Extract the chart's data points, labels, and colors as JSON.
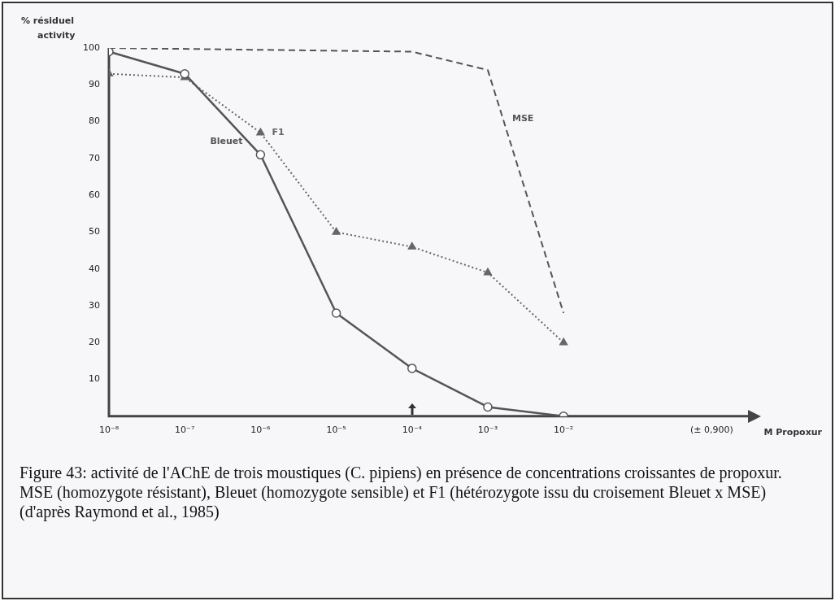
{
  "chart_data": {
    "type": "line",
    "ylabel": "% résiduel activity",
    "xlabel": "M Propoxur",
    "log": "x",
    "xlim": [
      1e-08,
      3
    ],
    "xticks": [
      {
        "value": 1e-08,
        "label": "10⁻⁸"
      },
      {
        "value": 1e-07,
        "label": "10⁻⁷"
      },
      {
        "value": 1e-06,
        "label": "10⁻⁶"
      },
      {
        "value": 1e-05,
        "label": "10⁻⁵"
      },
      {
        "value": 0.0001,
        "label": "10⁻⁴"
      },
      {
        "value": 0.001,
        "label": "10⁻³"
      },
      {
        "value": 0.01,
        "label": "10⁻²"
      },
      {
        "value": 0.9,
        "label": "(± 0,900)"
      }
    ],
    "ylim": [
      0,
      100
    ],
    "yticks": [
      10,
      20,
      30,
      40,
      50,
      60,
      70,
      80,
      90,
      100
    ],
    "grid": false,
    "legend": false,
    "series": [
      {
        "name": "Bleuet",
        "color": "#555555",
        "marker": "circle",
        "line_style": "solid",
        "x": [
          1e-08,
          1e-07,
          1e-06,
          1e-05,
          0.0001,
          0.001,
          0.01
        ],
        "values": [
          99,
          93,
          71,
          28,
          13,
          2.5,
          0
        ]
      },
      {
        "name": "F1",
        "color": "#666666",
        "marker": "triangle",
        "line_style": "dotted",
        "x": [
          1e-08,
          1e-07,
          1e-06,
          1e-05,
          0.0001,
          0.001,
          0.01
        ],
        "values": [
          93,
          92,
          77,
          50,
          46,
          39,
          20
        ]
      },
      {
        "name": "MSE",
        "color": "#555555",
        "marker": "none",
        "line_style": "dashed",
        "x": [
          1e-08,
          0.0001,
          0.001,
          0.01
        ],
        "values": [
          100,
          99,
          94,
          28
        ]
      }
    ],
    "annotations": [
      "Figure 43: activité de l'AChE de trois moustiques (C. pipiens) en présence de concentrations croissantes de propoxur. MSE (homozygote résistant), Bleuet (homozygote sensible) et F1 (hétérozygote issu du croisement Bleuet x MSE) (d'après Raymond et al., 1985)"
    ]
  }
}
